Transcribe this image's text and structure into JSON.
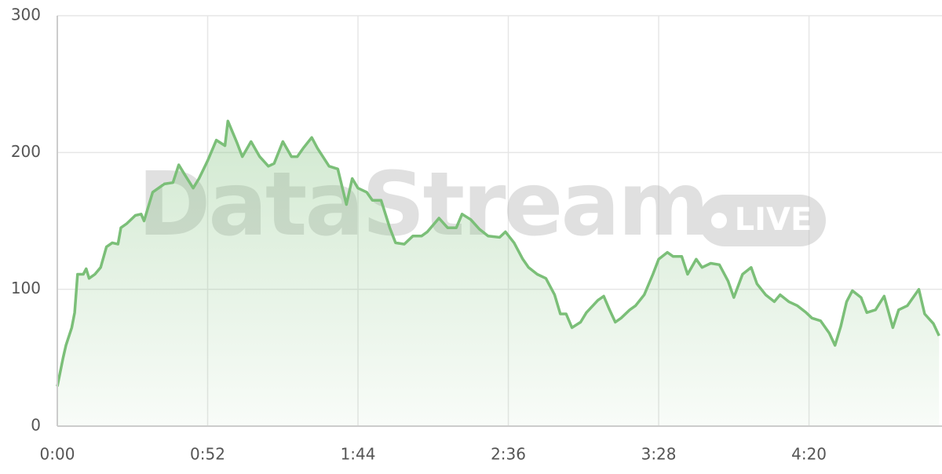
{
  "chart_data": {
    "type": "area",
    "watermark": "DataStream",
    "badge": "LIVE",
    "color": "#7bbf78",
    "grid": true,
    "xlim": [
      0,
      306
    ],
    "ylim": [
      0,
      300
    ],
    "xticks": [
      {
        "value": 0,
        "label": "0:00"
      },
      {
        "value": 52,
        "label": "0:52"
      },
      {
        "value": 104,
        "label": "1:44"
      },
      {
        "value": 156,
        "label": "2:36"
      },
      {
        "value": 208,
        "label": "3:28"
      },
      {
        "value": 260,
        "label": "4:20"
      }
    ],
    "yticks": [
      0,
      100,
      200,
      300
    ],
    "x": [
      0,
      2,
      3,
      5,
      6,
      7,
      9,
      10,
      11,
      13,
      15,
      17,
      19,
      21,
      22,
      24,
      27,
      29,
      30,
      33,
      35,
      37,
      40,
      42,
      44,
      47,
      49,
      52,
      55,
      58,
      59,
      62,
      64,
      67,
      70,
      73,
      75,
      78,
      81,
      83,
      85,
      88,
      90,
      94,
      97,
      100,
      102,
      104,
      107,
      109,
      112,
      115,
      117,
      120,
      123,
      126,
      128,
      132,
      135,
      138,
      140,
      143,
      146,
      149,
      153,
      155,
      158,
      161,
      163,
      166,
      169,
      172,
      174,
      176,
      178,
      181,
      183,
      187,
      189,
      191,
      193,
      195,
      198,
      200,
      203,
      206,
      208,
      211,
      213,
      216,
      218,
      221,
      223,
      226,
      229,
      232,
      234,
      237,
      240,
      242,
      245,
      248,
      250,
      253,
      256,
      259,
      261,
      264,
      267,
      269,
      271,
      273,
      275,
      278,
      280,
      283,
      286,
      289,
      291,
      294,
      298,
      300,
      303,
      305
    ],
    "values": [
      29,
      50,
      59,
      72,
      83,
      111,
      111,
      115,
      108,
      111,
      116,
      131,
      134,
      133,
      145,
      148,
      154,
      155,
      150,
      171,
      174,
      177,
      178,
      191,
      184,
      174,
      181,
      194,
      209,
      205,
      223,
      208,
      197,
      208,
      197,
      190,
      192,
      208,
      197,
      197,
      203,
      211,
      203,
      190,
      188,
      162,
      181,
      174,
      171,
      165,
      165,
      145,
      134,
      133,
      139,
      139,
      142,
      152,
      145,
      145,
      155,
      151,
      144,
      139,
      138,
      142,
      134,
      122,
      116,
      111,
      108,
      96,
      82,
      82,
      72,
      76,
      83,
      92,
      95,
      85,
      76,
      79,
      85,
      88,
      96,
      111,
      122,
      127,
      124,
      124,
      111,
      122,
      116,
      119,
      118,
      106,
      94,
      111,
      116,
      104,
      96,
      91,
      96,
      91,
      88,
      83,
      79,
      77,
      68,
      59,
      73,
      91,
      99,
      94,
      83,
      85,
      95,
      72,
      85,
      88,
      100,
      82,
      75,
      66
    ]
  }
}
